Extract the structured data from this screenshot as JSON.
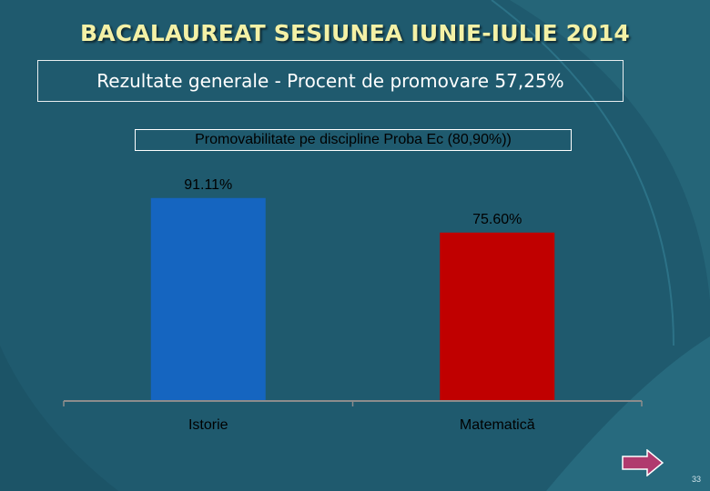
{
  "slide": {
    "title": "BACALAUREAT SESIUNEA IUNIE-IULIE 2014",
    "subtitle": "Rezultate generale - Procent de promovare 57,25%",
    "page_number": "33",
    "nav_icon": "right-arrow-icon"
  },
  "colors": {
    "background": "#1f5a6e",
    "title": "#f4f1a6",
    "istorie_bar": "#1565c0",
    "matematica_bar": "#c00000",
    "arrow_fill": "#b03a6e"
  },
  "chart_data": {
    "type": "bar",
    "title": "Promovabilitate pe discipline  Proba Ec  (80,90%))",
    "categories": [
      "Istorie",
      "Matematică"
    ],
    "values": [
      91.11,
      75.6
    ],
    "value_labels": [
      "91.11%",
      "75.60%"
    ],
    "bar_colors": [
      "#1565c0",
      "#c00000"
    ],
    "xlabel": "",
    "ylabel": "",
    "ylim": [
      0,
      100
    ],
    "grid": false,
    "legend": "none"
  }
}
